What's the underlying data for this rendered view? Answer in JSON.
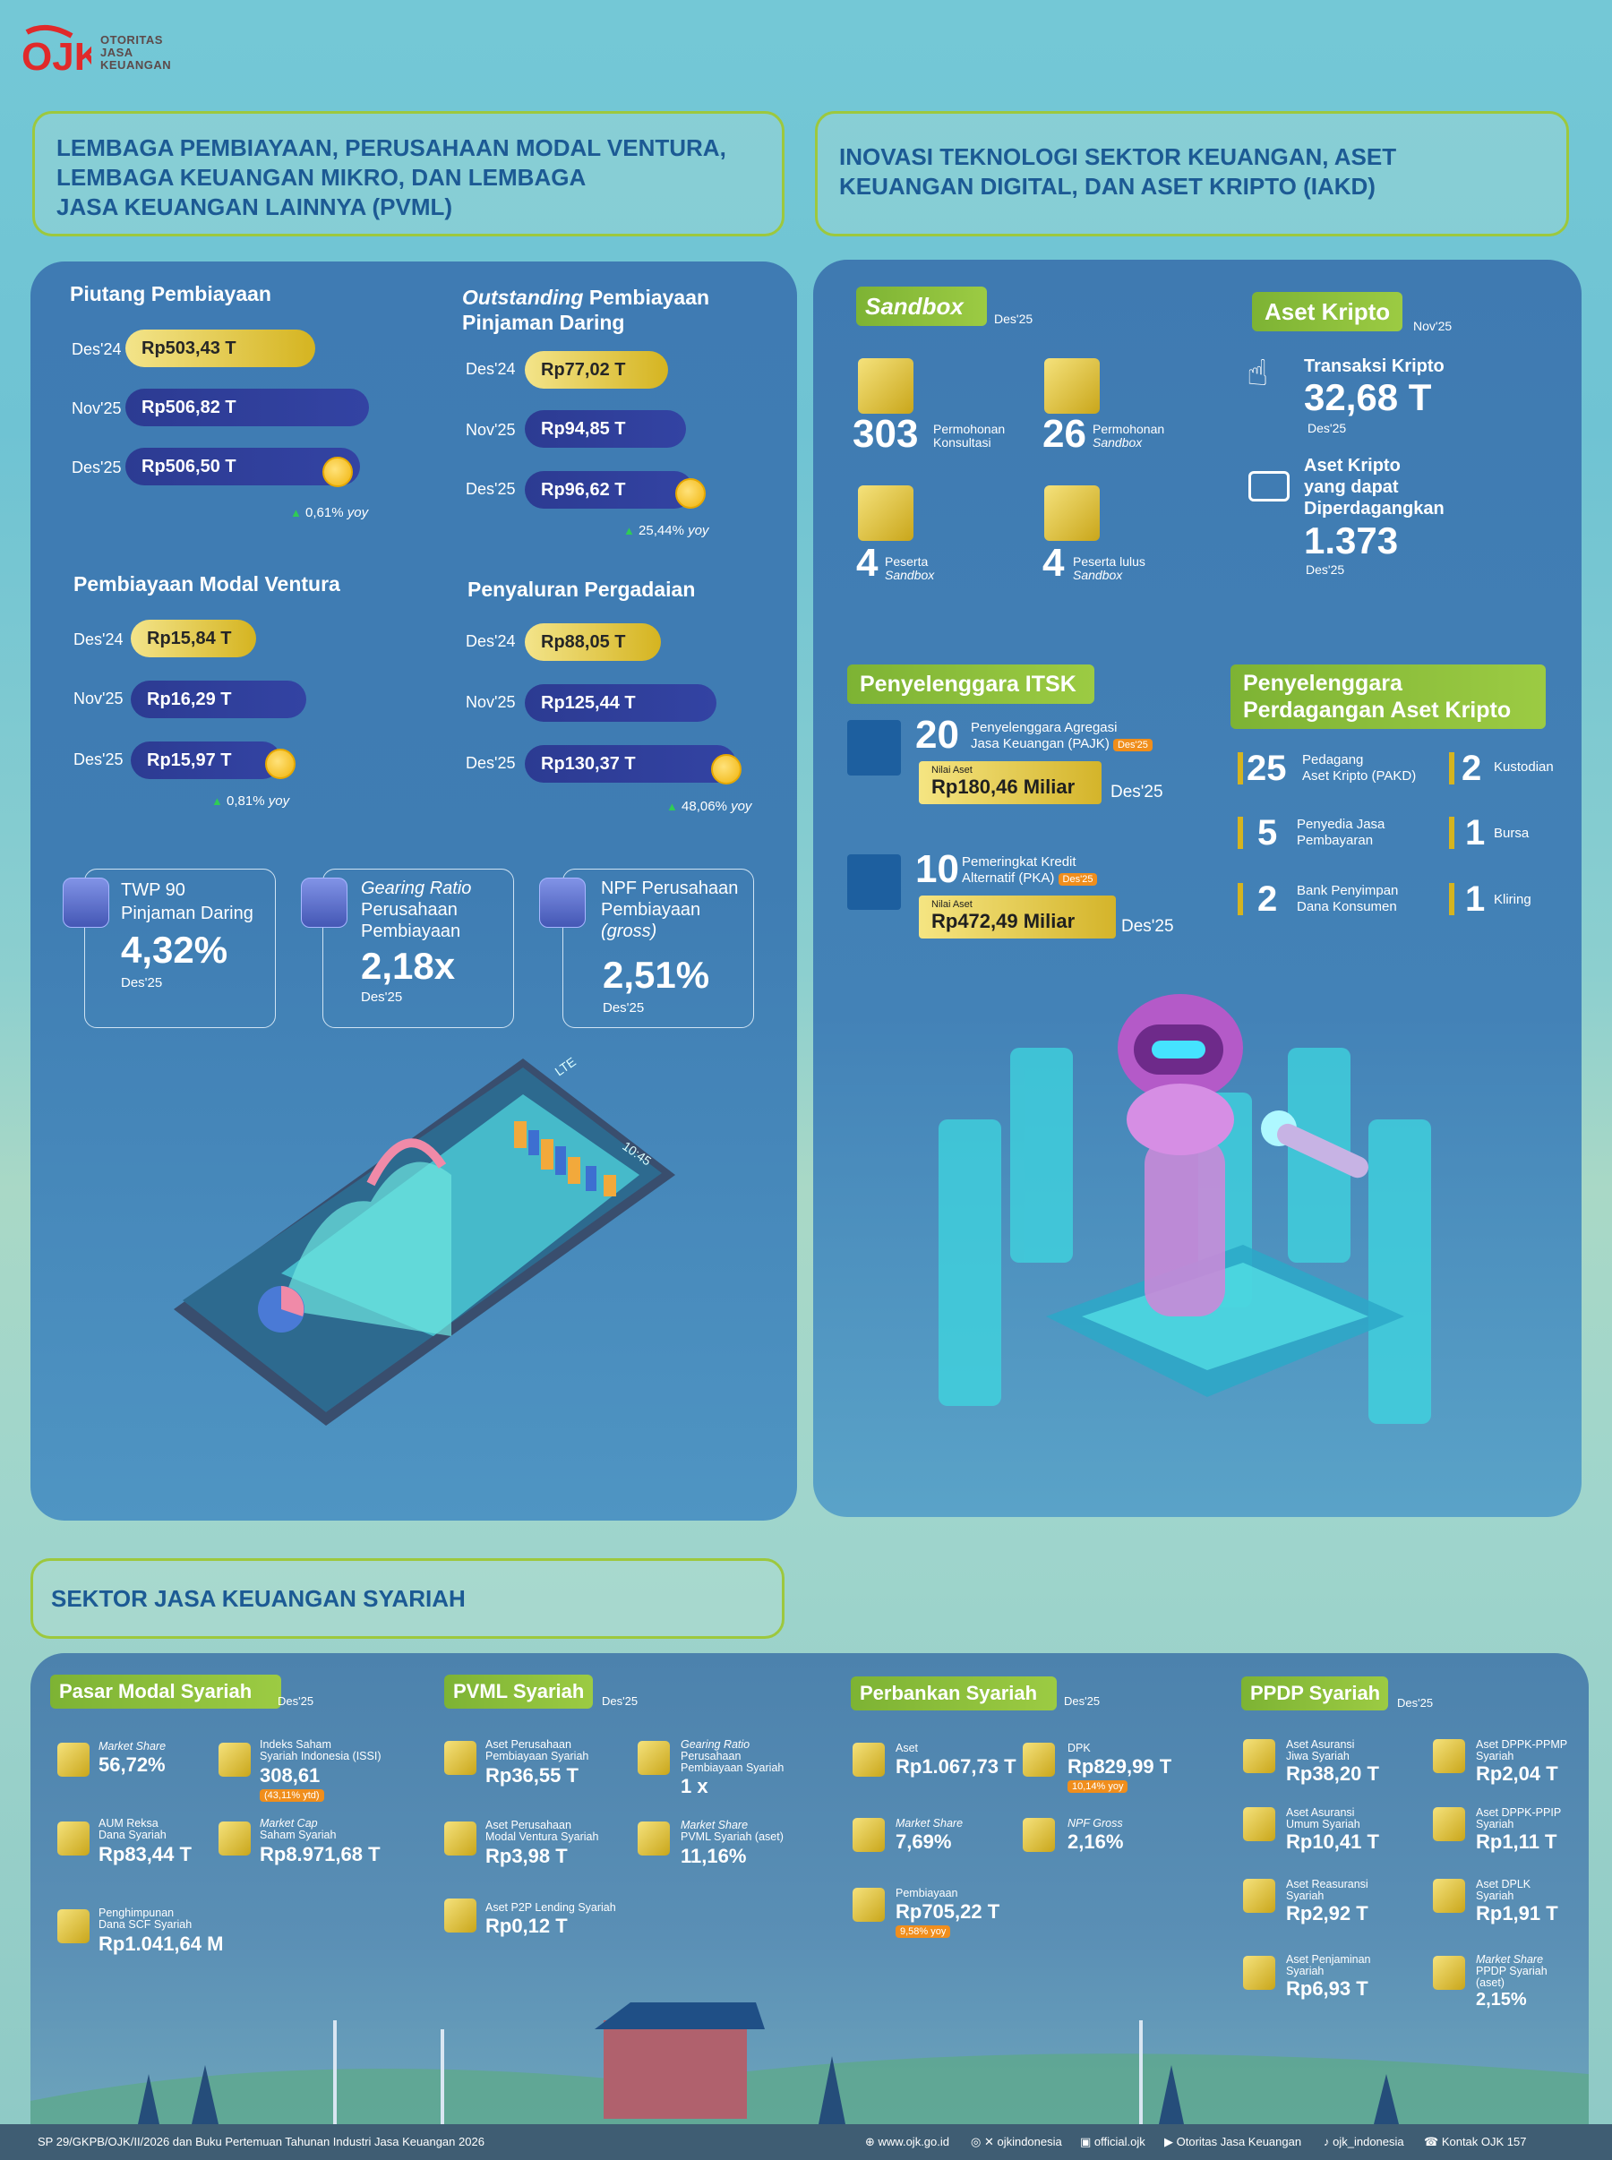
{
  "brand": {
    "name_lines": [
      "OTORITAS",
      "JASA",
      "KEUANGAN"
    ]
  },
  "headers": {
    "pvml": [
      "LEMBAGA PEMBIAYAAN, PERUSAHAAN MODAL VENTURA,",
      "LEMBAGA KEUANGAN MIKRO, DAN LEMBAGA",
      "JASA KEUANGAN LAINNYA (PVML)"
    ],
    "iakd": [
      "INOVASI TEKNOLOGI SEKTOR KEUANGAN, ASET",
      "KEUANGAN DIGITAL, DAN ASET KRIPTO (IAKD)"
    ],
    "syariah": "SEKTOR JASA KEUANGAN SYARIAH"
  },
  "pvml": {
    "piutang": {
      "title": "Piutang Pembiayaan",
      "rows": [
        {
          "label": "Des'24",
          "value": "Rp503,43 T"
        },
        {
          "label": "Nov'25",
          "value": "Rp506,82 T"
        },
        {
          "label": "Des'25",
          "value": "Rp506,50 T"
        }
      ],
      "yoy": "0,61%",
      "yoy_unit": "yoy"
    },
    "pindar": {
      "title_italic": "Outstanding",
      "title_rest": " Pembiayaan",
      "title2": "Pinjaman Daring",
      "rows": [
        {
          "label": "Des'24",
          "value": "Rp77,02 T"
        },
        {
          "label": "Nov'25",
          "value": "Rp94,85 T"
        },
        {
          "label": "Des'25",
          "value": "Rp96,62 T"
        }
      ],
      "yoy": "25,44%",
      "yoy_unit": "yoy"
    },
    "ventura": {
      "title": "Pembiayaan Modal Ventura",
      "rows": [
        {
          "label": "Des'24",
          "value": "Rp15,84 T"
        },
        {
          "label": "Nov'25",
          "value": "Rp16,29 T"
        },
        {
          "label": "Des'25",
          "value": "Rp15,97 T"
        }
      ],
      "yoy": "0,81%",
      "yoy_unit": "yoy"
    },
    "gadai": {
      "title": "Penyaluran Pergadaian",
      "rows": [
        {
          "label": "Des'24",
          "value": "Rp88,05 T"
        },
        {
          "label": "Nov'25",
          "value": "Rp125,44 T"
        },
        {
          "label": "Des'25",
          "value": "Rp130,37 T"
        }
      ],
      "yoy": "48,06%",
      "yoy_unit": "yoy"
    },
    "kpis": [
      {
        "l1": "TWP 90",
        "l2": "Pinjaman Daring",
        "l3": "",
        "value": "4,32%",
        "period": "Des'25"
      },
      {
        "l1": "Gearing Ratio",
        "l2": "Perusahaan",
        "l3": "Pembiayaan",
        "value": "2,18x",
        "period": "Des'25"
      },
      {
        "l1": "NPF  Perusahaan",
        "l2": "Pembiayaan",
        "l3": "(gross)",
        "value": "2,51%",
        "period": "Des'25"
      }
    ],
    "phone": {
      "network": "LTE",
      "time": "10:45"
    }
  },
  "iakd": {
    "sandbox": {
      "title": "Sandbox",
      "period": "Des'25",
      "items": [
        {
          "num": "303",
          "l1": "Permohonan",
          "l2": "Konsultasi"
        },
        {
          "num": "26",
          "l1": "Permohonan",
          "l2": "Sandbox"
        },
        {
          "num": "4",
          "l1": "Peserta",
          "l2": "Sandbox"
        },
        {
          "num": "4",
          "l1": "Peserta lulus",
          "l2": "Sandbox"
        }
      ]
    },
    "kripto": {
      "title": "Aset Kripto",
      "period": "Nov'25",
      "trx_label": "Transaksi Kripto",
      "trx_value": "32,68 T",
      "trx_period": "Des'25",
      "aset_l1": "Aset Kripto",
      "aset_l2": "yang dapat",
      "aset_l3": "Diperdagangkan",
      "aset_value": "1.373",
      "aset_period": "Des'25"
    },
    "itsk": {
      "title": "Penyelenggara ITSK",
      "items": [
        {
          "num": "20",
          "l1": "Penyelenggara Agregasi",
          "l2": "Jasa Keuangan (PAJK)",
          "tag": "Des'25",
          "nilai_label": "Nilai Aset",
          "nilai": "Rp180,46 Miliar",
          "period": "Des'25"
        },
        {
          "num": "10",
          "l1": "Pemeringkat Kredit",
          "l2": "Alternatif (PKA)",
          "tag": "Des'25",
          "nilai_label": "Nilai Aset",
          "nilai": "Rp472,49 Miliar",
          "period": "Des'25"
        }
      ]
    },
    "ppak": {
      "title1": "Penyelenggara",
      "title2": "Perdagangan Aset Kripto",
      "items": [
        {
          "num": "25",
          "l1": "Pedagang",
          "l2": "Aset Kripto (PAKD)"
        },
        {
          "num": "2",
          "l1": "Kustodian",
          "l2": ""
        },
        {
          "num": "5",
          "l1": "Penyedia Jasa",
          "l2": "Pembayaran"
        },
        {
          "num": "1",
          "l1": "Bursa",
          "l2": ""
        },
        {
          "num": "2",
          "l1": "Bank Penyimpan",
          "l2": "Dana Konsumen"
        },
        {
          "num": "1",
          "l1": "Kliring",
          "l2": ""
        }
      ]
    }
  },
  "syariah": {
    "pasar": {
      "title": "Pasar Modal Syariah",
      "period": "Des'25",
      "items": [
        {
          "l": [
            "Market Share"
          ],
          "v": "56,72%"
        },
        {
          "l": [
            "Indeks Saham",
            "Syariah Indonesia (ISSI)"
          ],
          "v": "308,61",
          "tag": "(43,11% ytd)"
        },
        {
          "l": [
            "AUM Reksa",
            "Dana Syariah"
          ],
          "v": "Rp83,44 T"
        },
        {
          "l": [
            "Market Cap",
            "Saham Syariah"
          ],
          "v": "Rp8.971,68 T"
        },
        {
          "l": [
            "Penghimpunan",
            "Dana SCF Syariah"
          ],
          "v": "Rp1.041,64 M"
        }
      ]
    },
    "pvml": {
      "title": "PVML Syariah",
      "period": "Des'25",
      "items": [
        {
          "l": [
            "Aset Perusahaan",
            "Pembiayaan Syariah"
          ],
          "v": "Rp36,55 T"
        },
        {
          "l": [
            "Gearing Ratio",
            "Perusahaan",
            "Pembiayaan Syariah"
          ],
          "v": "1 x"
        },
        {
          "l": [
            "Aset Perusahaan",
            "Modal Ventura Syariah"
          ],
          "v": "Rp3,98 T"
        },
        {
          "l": [
            "Market Share",
            "PVML Syariah (aset)"
          ],
          "v": "11,16%"
        },
        {
          "l": [
            "Aset P2P Lending Syariah"
          ],
          "v": "Rp0,12 T"
        }
      ]
    },
    "bank": {
      "title": "Perbankan Syariah",
      "period": "Des'25",
      "items": [
        {
          "l": [
            "Aset"
          ],
          "v": "Rp1.067,73 T"
        },
        {
          "l": [
            "DPK"
          ],
          "v": "Rp829,99 T",
          "tag": "10,14% yoy"
        },
        {
          "l": [
            "Market Share"
          ],
          "v": "7,69%"
        },
        {
          "l": [
            "NPF Gross"
          ],
          "v": "2,16%"
        },
        {
          "l": [
            "Pembiayaan"
          ],
          "v": "Rp705,22 T",
          "tag": "9,58% yoy"
        }
      ]
    },
    "ppdp": {
      "title": "PPDP Syariah",
      "period": "Des'25",
      "items": [
        {
          "l": [
            "Aset Asuransi",
            "Jiwa Syariah"
          ],
          "v": "Rp38,20 T"
        },
        {
          "l": [
            "Aset DPPK-PPMP",
            "Syariah"
          ],
          "v": "Rp2,04 T"
        },
        {
          "l": [
            "Aset Asuransi",
            "Umum Syariah"
          ],
          "v": "Rp10,41 T"
        },
        {
          "l": [
            "Aset DPPK-PPIP",
            "Syariah"
          ],
          "v": "Rp1,11 T"
        },
        {
          "l": [
            "Aset Reasuransi",
            "Syariah"
          ],
          "v": "Rp2,92 T"
        },
        {
          "l": [
            "Aset DPLK",
            "Syariah"
          ],
          "v": "Rp1,91 T"
        },
        {
          "l": [
            "Aset Penjaminan",
            "Syariah"
          ],
          "v": "Rp6,93 T"
        },
        {
          "l": [
            "Market Share",
            "PPDP Syariah",
            "(aset)"
          ],
          "v": "2,15%"
        }
      ]
    }
  },
  "footer": {
    "source": "SP 29/GKPB/OJK/II/2026 dan Buku Pertemuan Tahunan Industri Jasa Keuangan 2026",
    "links": [
      "www.ojk.go.id",
      "ojkindonesia",
      "official.ojk",
      "Otoritas Jasa Keuangan",
      "ojk_indonesia",
      "Kontak OJK 157"
    ]
  },
  "colors": {
    "accent_green": "#9dc83d",
    "header_blue": "#1c5a94",
    "gold": "#d5b420",
    "navy": "#2c3b92"
  }
}
